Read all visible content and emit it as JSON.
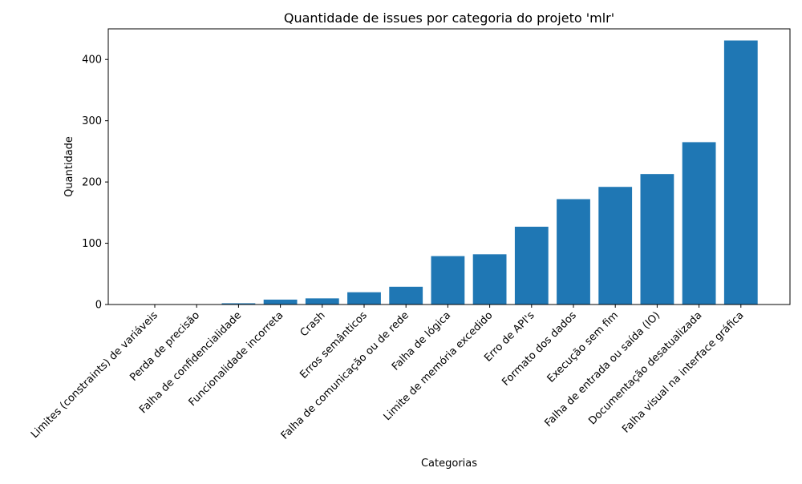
{
  "chart_data": {
    "type": "bar",
    "title": "Quantidade de issues por categoria do projeto 'mlr'",
    "xlabel": "Categorias",
    "ylabel": "Quantidade",
    "ylim": [
      0,
      450
    ],
    "yticks": [
      0,
      100,
      200,
      300,
      400
    ],
    "grid": false,
    "bar_color": "#1f77b4",
    "categories": [
      "Limites (constraints) de variáveis",
      "Perda de precisão",
      "Falha de confidencialidade",
      "Funcionalidade incorreta",
      "Crash",
      "Erros semânticos",
      "Falha de comunicação ou de rede",
      "Falha de lógica",
      "Limite de memória excedido",
      "Erro de API's",
      "Formato dos dados",
      "Execução sem fim",
      "Falha de entrada ou saída (IO)",
      "Documentação desatualizada",
      "Falha visual na interface gráfica"
    ],
    "values": [
      0,
      0,
      2,
      8,
      10,
      20,
      29,
      79,
      82,
      127,
      172,
      192,
      213,
      265,
      431
    ]
  }
}
